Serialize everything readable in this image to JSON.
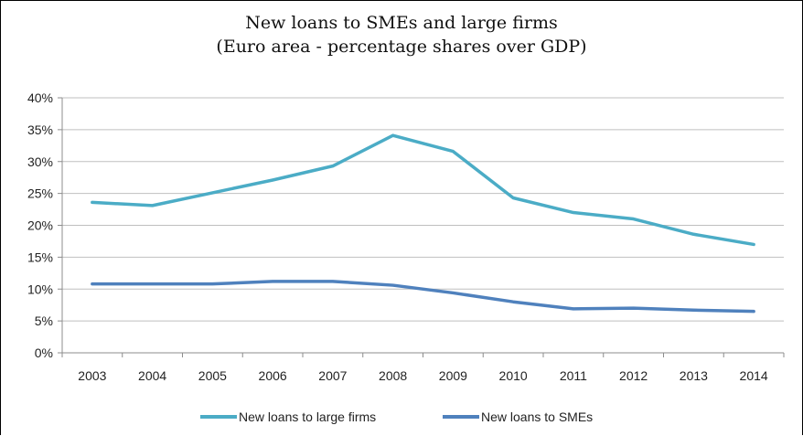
{
  "chart_data": {
    "type": "line",
    "title": "New loans to SMEs and large firms",
    "subtitle": "(Euro area - percentage shares over GDP)",
    "xlabel": "",
    "ylabel": "",
    "categories": [
      "2003",
      "2004",
      "2005",
      "2006",
      "2007",
      "2008",
      "2009",
      "2010",
      "2011",
      "2012",
      "2013",
      "2014"
    ],
    "ylim": [
      0,
      40
    ],
    "yticks": [
      0,
      5,
      10,
      15,
      20,
      25,
      30,
      35,
      40
    ],
    "ytick_labels": [
      "0%",
      "5%",
      "10%",
      "15%",
      "20%",
      "25%",
      "30%",
      "35%",
      "40%"
    ],
    "grid": true,
    "legend_position": "bottom",
    "series": [
      {
        "name": "New loans to large firms",
        "color": "#4bacc6",
        "values": [
          23.6,
          23.1,
          25.1,
          27.1,
          29.3,
          34.1,
          31.6,
          24.3,
          22.0,
          21.0,
          18.6,
          17.0
        ]
      },
      {
        "name": "New loans to SMEs",
        "color": "#4f81bd",
        "values": [
          10.8,
          10.8,
          10.8,
          11.2,
          11.2,
          10.6,
          9.4,
          8.0,
          6.9,
          7.0,
          6.7,
          6.5
        ]
      }
    ]
  }
}
